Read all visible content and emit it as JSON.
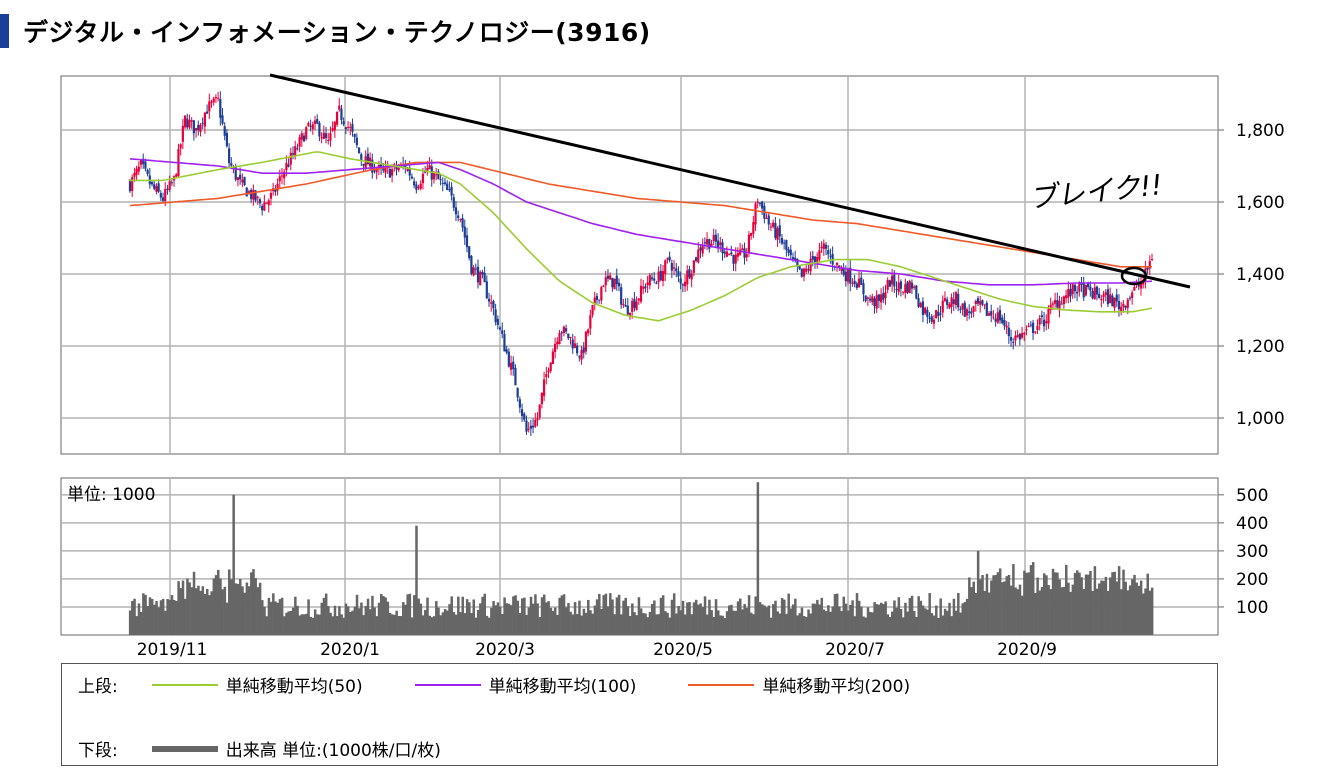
{
  "page": {
    "title": "デジタル・インフォメーション・テクノロジー(3916)"
  },
  "colors": {
    "up_candle": "#e8003c",
    "down_candle": "#1c3d96",
    "ma50": "#9acd32",
    "ma100": "#a020f0",
    "ma200": "#f05a28",
    "volume": "#666666",
    "trendline": "#000000",
    "grid": "#b4b4b4"
  },
  "chart_data": [
    {
      "type": "candlestick",
      "y_ticks": [
        "1,800",
        "1,600",
        "1,400",
        "1,200",
        "1,000"
      ],
      "y_tick_values": [
        1800,
        1600,
        1400,
        1200,
        1000
      ],
      "ylim": [
        900,
        1950
      ],
      "x_ticks": [
        "2019/11",
        "2020/1",
        "2020/3",
        "2020/5",
        "2020/7",
        "2020/9"
      ],
      "period": [
        "2019/10",
        "2020/10"
      ],
      "series_keypoints": {
        "price_close_approx": [
          [
            0,
            1650
          ],
          [
            5,
            1700
          ],
          [
            10,
            1640
          ],
          [
            15,
            1610
          ],
          [
            20,
            1660
          ],
          [
            25,
            1830
          ],
          [
            30,
            1800
          ],
          [
            35,
            1860
          ],
          [
            40,
            1880
          ],
          [
            45,
            1710
          ],
          [
            50,
            1650
          ],
          [
            55,
            1620
          ],
          [
            60,
            1590
          ],
          [
            65,
            1620
          ],
          [
            70,
            1690
          ],
          [
            75,
            1740
          ],
          [
            80,
            1800
          ],
          [
            85,
            1810
          ],
          [
            90,
            1760
          ],
          [
            95,
            1850
          ],
          [
            100,
            1800
          ],
          [
            105,
            1720
          ],
          [
            110,
            1700
          ],
          [
            115,
            1680
          ],
          [
            120,
            1690
          ],
          [
            125,
            1700
          ],
          [
            130,
            1650
          ],
          [
            135,
            1690
          ],
          [
            140,
            1660
          ],
          [
            145,
            1620
          ],
          [
            150,
            1560
          ],
          [
            155,
            1420
          ],
          [
            160,
            1380
          ],
          [
            165,
            1300
          ],
          [
            170,
            1200
          ],
          [
            175,
            1100
          ],
          [
            180,
            960
          ],
          [
            185,
            1000
          ],
          [
            190,
            1150
          ],
          [
            195,
            1250
          ],
          [
            200,
            1220
          ],
          [
            205,
            1170
          ],
          [
            210,
            1300
          ],
          [
            215,
            1380
          ],
          [
            220,
            1380
          ],
          [
            225,
            1300
          ],
          [
            230,
            1330
          ],
          [
            235,
            1380
          ],
          [
            240,
            1390
          ],
          [
            245,
            1440
          ],
          [
            250,
            1370
          ],
          [
            255,
            1420
          ],
          [
            260,
            1490
          ],
          [
            265,
            1490
          ],
          [
            270,
            1470
          ],
          [
            275,
            1440
          ],
          [
            280,
            1460
          ],
          [
            285,
            1610
          ],
          [
            290,
            1540
          ],
          [
            295,
            1500
          ],
          [
            300,
            1440
          ],
          [
            305,
            1390
          ],
          [
            310,
            1440
          ],
          [
            315,
            1470
          ],
          [
            320,
            1430
          ],
          [
            325,
            1400
          ],
          [
            330,
            1380
          ],
          [
            335,
            1330
          ],
          [
            340,
            1320
          ],
          [
            345,
            1380
          ],
          [
            350,
            1360
          ],
          [
            355,
            1370
          ],
          [
            360,
            1300
          ],
          [
            365,
            1280
          ],
          [
            370,
            1320
          ],
          [
            375,
            1330
          ],
          [
            380,
            1290
          ],
          [
            385,
            1310
          ],
          [
            390,
            1290
          ],
          [
            395,
            1280
          ],
          [
            400,
            1220
          ],
          [
            405,
            1230
          ],
          [
            410,
            1250
          ],
          [
            415,
            1270
          ],
          [
            420,
            1320
          ],
          [
            425,
            1340
          ],
          [
            430,
            1360
          ],
          [
            435,
            1350
          ],
          [
            440,
            1340
          ],
          [
            445,
            1330
          ],
          [
            450,
            1310
          ],
          [
            455,
            1350
          ],
          [
            460,
            1380
          ],
          [
            464,
            1450
          ]
        ],
        "ma50_approx": [
          [
            0,
            1660
          ],
          [
            15,
            1660
          ],
          [
            40,
            1690
          ],
          [
            60,
            1710
          ],
          [
            85,
            1740
          ],
          [
            100,
            1720
          ],
          [
            120,
            1700
          ],
          [
            140,
            1680
          ],
          [
            150,
            1650
          ],
          [
            165,
            1570
          ],
          [
            180,
            1470
          ],
          [
            195,
            1380
          ],
          [
            210,
            1320
          ],
          [
            225,
            1285
          ],
          [
            240,
            1270
          ],
          [
            255,
            1300
          ],
          [
            270,
            1340
          ],
          [
            285,
            1390
          ],
          [
            300,
            1420
          ],
          [
            320,
            1440
          ],
          [
            335,
            1440
          ],
          [
            350,
            1420
          ],
          [
            365,
            1390
          ],
          [
            380,
            1360
          ],
          [
            395,
            1330
          ],
          [
            410,
            1310
          ],
          [
            425,
            1300
          ],
          [
            440,
            1295
          ],
          [
            455,
            1295
          ],
          [
            464,
            1305
          ]
        ],
        "ma100_approx": [
          [
            0,
            1720
          ],
          [
            20,
            1710
          ],
          [
            40,
            1700
          ],
          [
            60,
            1680
          ],
          [
            80,
            1680
          ],
          [
            100,
            1690
          ],
          [
            120,
            1700
          ],
          [
            140,
            1710
          ],
          [
            150,
            1690
          ],
          [
            165,
            1650
          ],
          [
            180,
            1600
          ],
          [
            195,
            1570
          ],
          [
            210,
            1540
          ],
          [
            230,
            1510
          ],
          [
            250,
            1490
          ],
          [
            270,
            1470
          ],
          [
            290,
            1450
          ],
          [
            310,
            1430
          ],
          [
            330,
            1410
          ],
          [
            350,
            1400
          ],
          [
            370,
            1380
          ],
          [
            390,
            1370
          ],
          [
            410,
            1370
          ],
          [
            430,
            1375
          ],
          [
            450,
            1375
          ],
          [
            464,
            1380
          ]
        ],
        "ma200_approx": [
          [
            0,
            1590
          ],
          [
            40,
            1610
          ],
          [
            80,
            1650
          ],
          [
            110,
            1690
          ],
          [
            130,
            1710
          ],
          [
            150,
            1710
          ],
          [
            170,
            1680
          ],
          [
            190,
            1650
          ],
          [
            210,
            1630
          ],
          [
            230,
            1610
          ],
          [
            250,
            1600
          ],
          [
            270,
            1590
          ],
          [
            290,
            1570
          ],
          [
            310,
            1550
          ],
          [
            330,
            1540
          ],
          [
            350,
            1520
          ],
          [
            370,
            1500
          ],
          [
            390,
            1480
          ],
          [
            410,
            1460
          ],
          [
            430,
            1440
          ],
          [
            450,
            1420
          ],
          [
            464,
            1420
          ]
        ]
      },
      "trendline": {
        "from": [
          0,
          1900
        ],
        "to": [
          464,
          1340
        ]
      },
      "annotations": [
        {
          "text": "ブレイク!!",
          "x": 455,
          "y": 1540
        }
      ]
    },
    {
      "type": "bar",
      "unit_label": "単位: 1000",
      "y_ticks": [
        "500",
        "400",
        "300",
        "200",
        "100"
      ],
      "y_tick_values": [
        500,
        400,
        300,
        200,
        100
      ],
      "ylim": [
        0,
        560
      ],
      "spikes": [
        [
          47,
          500
        ],
        [
          130,
          390
        ],
        [
          285,
          545
        ],
        [
          385,
          300
        ],
        [
          410,
          260
        ],
        [
          425,
          250
        ]
      ],
      "baseline_range": [
        40,
        240
      ]
    }
  ],
  "legend": {
    "upper_label": "上段:",
    "lower_label": "下段:",
    "items": [
      {
        "label": "単純移動平均(50)",
        "color": "#9acd32"
      },
      {
        "label": "単純移動平均(100)",
        "color": "#a020f0"
      },
      {
        "label": "単純移動平均(200)",
        "color": "#f05a28"
      }
    ],
    "volume_label": "出来高 単位:(1000株/口/枚)"
  }
}
